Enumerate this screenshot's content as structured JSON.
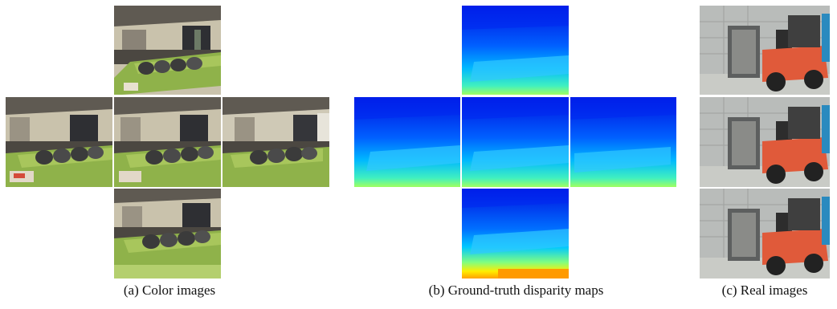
{
  "figure": {
    "panels": [
      {
        "id": "a",
        "caption": "(a) Color images",
        "views": [
          "top",
          "left",
          "center",
          "right",
          "bottom"
        ],
        "content": "living room with green sofa and dark cushions"
      },
      {
        "id": "b",
        "caption": "(b) Ground-truth disparity maps",
        "views": [
          "top",
          "left",
          "center",
          "right",
          "bottom"
        ],
        "colormap": [
          "#0000ff",
          "#00ffff",
          "#ffff00",
          "#ff8800"
        ]
      },
      {
        "id": "c",
        "caption": "(c) Real images",
        "views": [
          "top",
          "middle",
          "bottom"
        ],
        "content": "orange forklift with black fork carriage"
      }
    ]
  }
}
